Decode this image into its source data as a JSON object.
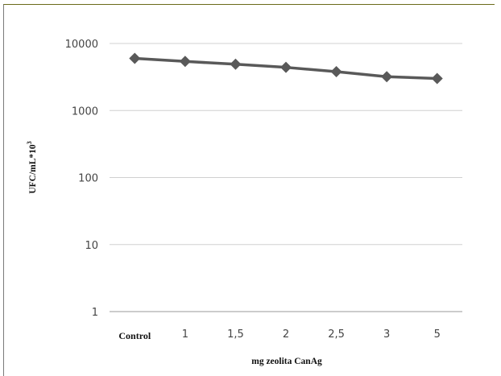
{
  "chart_data": {
    "type": "line",
    "y_scale": "log",
    "categories": [
      "Control",
      "1",
      "1,5",
      "2",
      "2,5",
      "3",
      "5"
    ],
    "series": [
      {
        "values": [
          6000,
          5400,
          4900,
          4400,
          3800,
          3200,
          3000
        ]
      }
    ],
    "y_ticks": [
      "1",
      "10",
      "100",
      "1000",
      "10000"
    ],
    "ylim": [
      1,
      10000
    ],
    "xlabel": "mg zeolita CanAg",
    "ylabel": "UFC/mL*10",
    "ylabel_superscript": "3",
    "grid": "horizontal",
    "legend": "none",
    "line_color": "#595959",
    "marker": "diamond"
  }
}
